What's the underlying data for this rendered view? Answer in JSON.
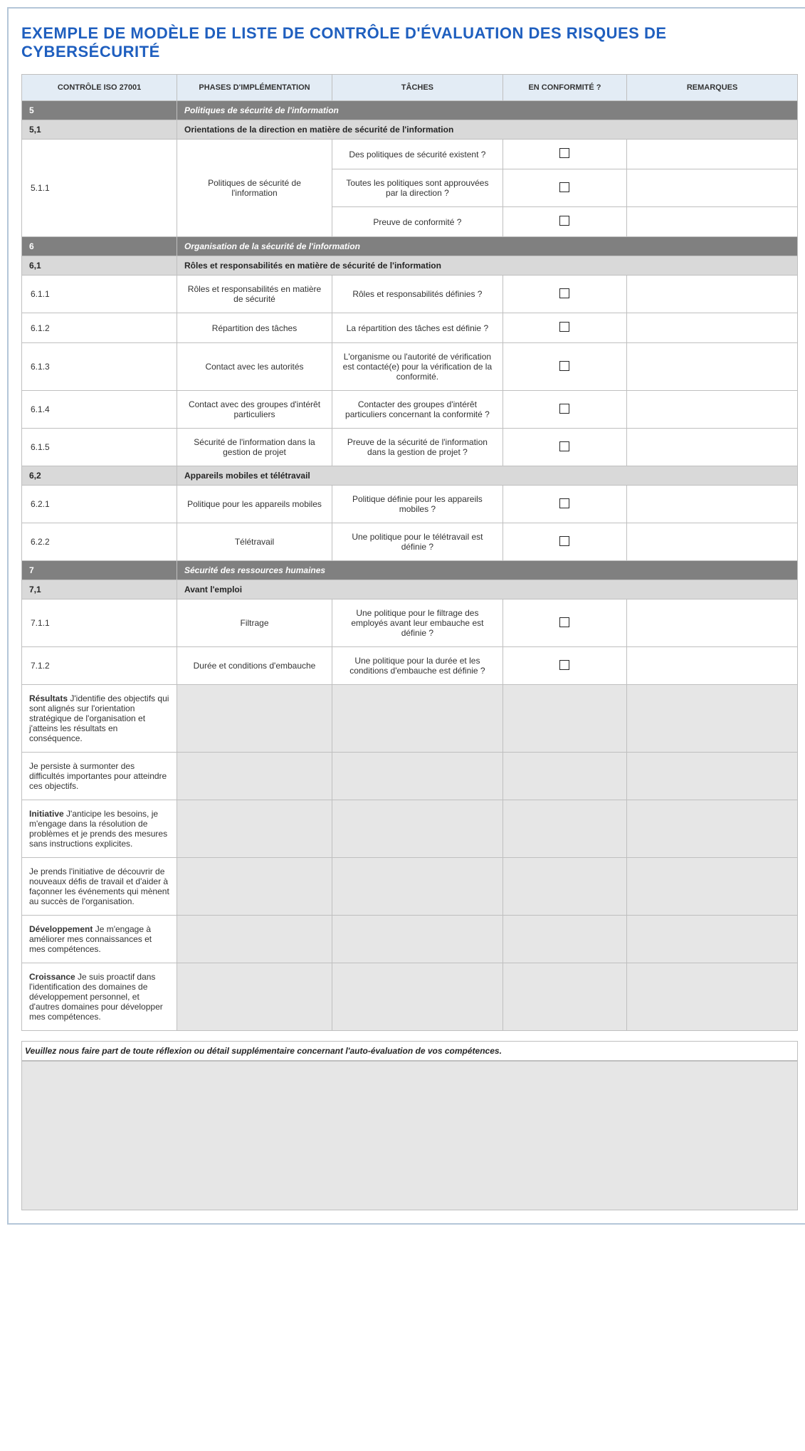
{
  "title": "EXEMPLE DE MODÈLE DE LISTE DE CONTRÔLE D'ÉVALUATION DES RISQUES DE CYBERSÉCURITÉ",
  "columns": {
    "c1": "CONTRÔLE ISO 27001",
    "c2": "PHASES D'IMPLÉMENTATION",
    "c3": "TÂCHES",
    "c4": "EN CONFORMITÉ ?",
    "c5": "REMARQUES"
  },
  "sections": [
    {
      "num": "5",
      "title": "Politiques de sécurité de l'information",
      "subs": [
        {
          "num": "5,1",
          "title": "Orientations de la direction en matière de sécurité de l'information",
          "rows": [
            {
              "ctrl": "5.1.1",
              "phase": "Politiques de sécurité de l'information",
              "tasks": [
                "Des politiques de sécurité existent ?",
                "Toutes les politiques sont approuvées par la direction ?",
                "Preuve de conformité ?"
              ]
            }
          ]
        }
      ]
    },
    {
      "num": "6",
      "title": "Organisation de la sécurité de l'information",
      "subs": [
        {
          "num": "6,1",
          "title": "Rôles et responsabilités en matière de sécurité de l'information",
          "rows": [
            {
              "ctrl": "6.1.1",
              "phase": "Rôles et responsabilités en matière de sécurité",
              "tasks": [
                "Rôles et responsabilités définies ?"
              ]
            },
            {
              "ctrl": "6.1.2",
              "phase": "Répartition des tâches",
              "tasks": [
                "La répartition des tâches est définie ?"
              ]
            },
            {
              "ctrl": "6.1.3",
              "phase": "Contact avec les autorités",
              "tasks": [
                "L'organisme ou l'autorité de vérification est contacté(e) pour la vérification de la conformité."
              ]
            },
            {
              "ctrl": "6.1.4",
              "phase": "Contact avec des groupes d'intérêt particuliers",
              "tasks": [
                "Contacter des groupes d'intérêt particuliers concernant la conformité ?"
              ]
            },
            {
              "ctrl": "6.1.5",
              "phase": "Sécurité de l'information dans la gestion de projet",
              "tasks": [
                "Preuve de la sécurité de l'information dans la gestion de projet ?"
              ]
            }
          ]
        },
        {
          "num": "6,2",
          "title": "Appareils mobiles et télétravail",
          "rows": [
            {
              "ctrl": "6.2.1",
              "phase": "Politique pour les appareils mobiles",
              "tasks": [
                "Politique définie pour les appareils mobiles ?"
              ]
            },
            {
              "ctrl": "6.2.2",
              "phase": "Télétravail",
              "tasks": [
                "Une politique pour le télétravail est définie ?"
              ]
            }
          ]
        }
      ]
    },
    {
      "num": "7",
      "title": "Sécurité des ressources humaines",
      "subs": [
        {
          "num": "7,1",
          "title": "Avant l'emploi",
          "rows": [
            {
              "ctrl": "7.1.1",
              "phase": "Filtrage",
              "tasks": [
                "Une politique pour le filtrage des employés avant leur embauche est définie ?"
              ]
            },
            {
              "ctrl": "7.1.2",
              "phase": "Durée et conditions d'embauche",
              "tasks": [
                "Une politique pour la durée et les conditions d'embauche est définie ?"
              ]
            }
          ]
        }
      ]
    }
  ],
  "textRows": [
    {
      "label": "Résultats",
      "text": "J'identifie des objectifs qui sont alignés sur l'orientation stratégique de l'organisation et j'atteins les résultats en conséquence."
    },
    {
      "label": "",
      "text": "Je persiste à surmonter des difficultés importantes pour atteindre ces objectifs."
    },
    {
      "label": "Initiative",
      "text": "J'anticipe les besoins, je m'engage dans la résolution de problèmes et je prends des mesures sans instructions explicites."
    },
    {
      "label": "",
      "text": "Je prends l'initiative de découvrir de nouveaux défis de travail et d'aider à façonner les événements qui mènent au succès de l'organisation."
    },
    {
      "label": "Développement",
      "text": "Je m'engage à améliorer mes connaissances et mes compétences."
    },
    {
      "label": "Croissance",
      "text": "Je suis proactif dans l'identification des domaines de développement personnel, et d'autres domaines pour développer mes compétences."
    }
  ],
  "footerLabel": "Veuillez nous faire part de toute réflexion ou détail supplémentaire concernant l'auto-évaluation de vos compétences.",
  "colors": {
    "border": "#b4c6d8",
    "title": "#1f5fbf",
    "headerBg": "#e3ecf5",
    "sectionBg": "#808080",
    "subsectionBg": "#d9d9d9",
    "greyCell": "#e6e6e6"
  }
}
